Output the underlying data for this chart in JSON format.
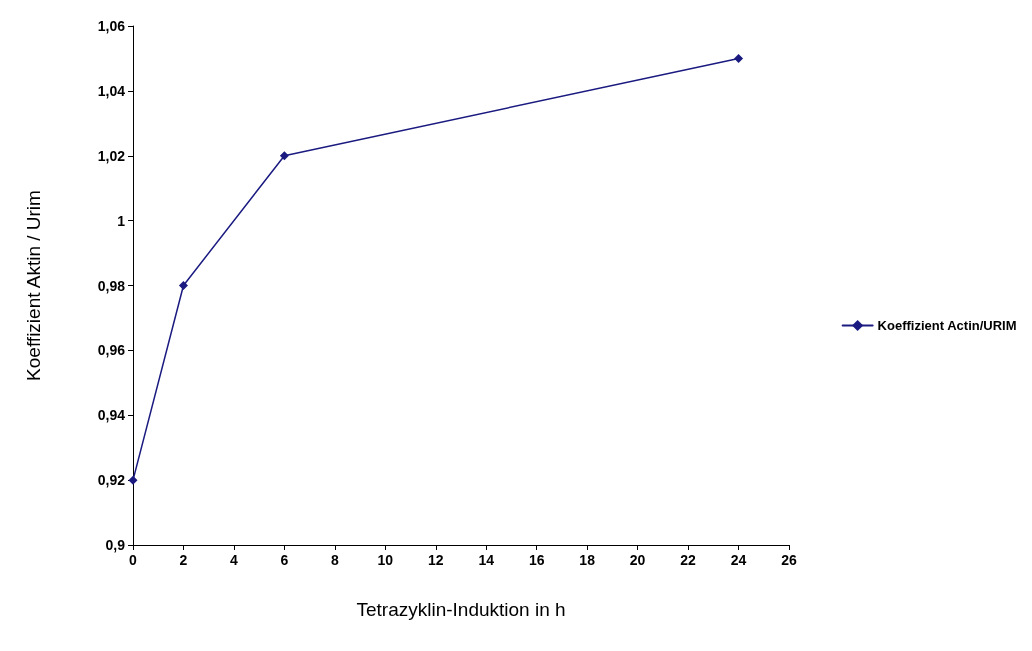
{
  "chart_data": {
    "type": "line",
    "xlabel": "Tetrazyklin-Induktion in h",
    "ylabel": "Koeffizient Aktin / Urim",
    "series": [
      {
        "name": "Koeffizient Actin/URIM",
        "color": "#1a1a80",
        "x": [
          0,
          2,
          6,
          24
        ],
        "values": [
          0.92,
          0.98,
          1.02,
          1.05
        ]
      }
    ],
    "xlim": [
      0,
      26
    ],
    "xticks": [
      0,
      2,
      4,
      6,
      8,
      10,
      12,
      14,
      16,
      18,
      20,
      22,
      24,
      26
    ],
    "ylim": [
      0.9,
      1.06
    ],
    "yticks": [
      {
        "value": 0.9,
        "label": "0,9"
      },
      {
        "value": 0.92,
        "label": "0,92"
      },
      {
        "value": 0.94,
        "label": "0,94"
      },
      {
        "value": 0.96,
        "label": "0,96"
      },
      {
        "value": 0.98,
        "label": "0,98"
      },
      {
        "value": 1,
        "label": "1"
      },
      {
        "value": 1.02,
        "label": "1,02"
      },
      {
        "value": 1.04,
        "label": "1,04"
      },
      {
        "value": 1.06,
        "label": "1,06"
      }
    ],
    "grid": false,
    "legend": "right",
    "marker": "diamond",
    "line_style": "solid"
  }
}
